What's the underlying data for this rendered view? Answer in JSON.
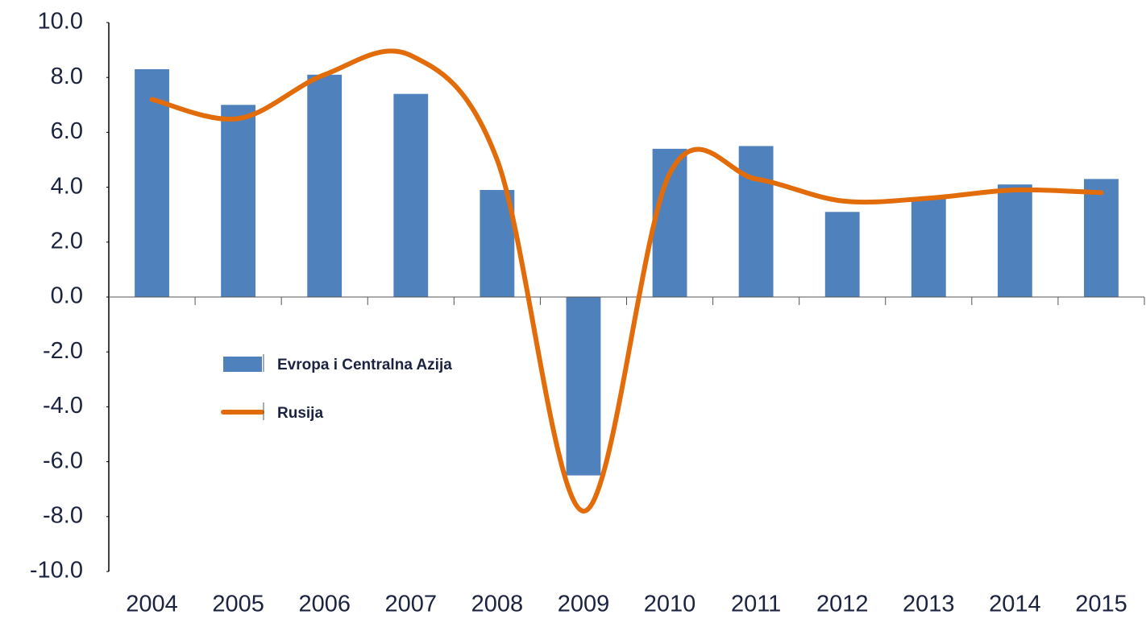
{
  "chart_data": {
    "type": "bar-line",
    "categories": [
      "2004",
      "2005",
      "2006",
      "2007",
      "2008",
      "2009",
      "2010",
      "2011",
      "2012",
      "2013",
      "2014",
      "2015"
    ],
    "series": [
      {
        "name": "Evropa i Centralna Azija",
        "type": "bar",
        "color": "#4f81bd",
        "values": [
          8.3,
          7.0,
          8.1,
          7.4,
          3.9,
          -6.5,
          5.4,
          5.5,
          3.1,
          3.6,
          4.1,
          4.3
        ]
      },
      {
        "name": "Rusija",
        "type": "line",
        "color": "#e36c0a",
        "smooth": true,
        "values": [
          7.2,
          6.5,
          8.1,
          8.8,
          5.0,
          -7.8,
          4.5,
          4.3,
          3.5,
          3.6,
          3.9,
          3.8
        ]
      }
    ],
    "ylim": [
      -10,
      10
    ],
    "yticks": [
      {
        "value": -10,
        "label": "-10.0"
      },
      {
        "value": -8,
        "label": "-8.0"
      },
      {
        "value": -6,
        "label": "-6.0"
      },
      {
        "value": -4,
        "label": "-4.0"
      },
      {
        "value": -2,
        "label": "-2.0"
      },
      {
        "value": 0,
        "label": "0.0"
      },
      {
        "value": 2,
        "label": "2.0"
      },
      {
        "value": 4,
        "label": "4.0"
      },
      {
        "value": 6,
        "label": "6.0"
      },
      {
        "value": 8,
        "label": "8.0"
      },
      {
        "value": 10,
        "label": "10.0"
      }
    ],
    "grid": false,
    "legend": "left"
  }
}
